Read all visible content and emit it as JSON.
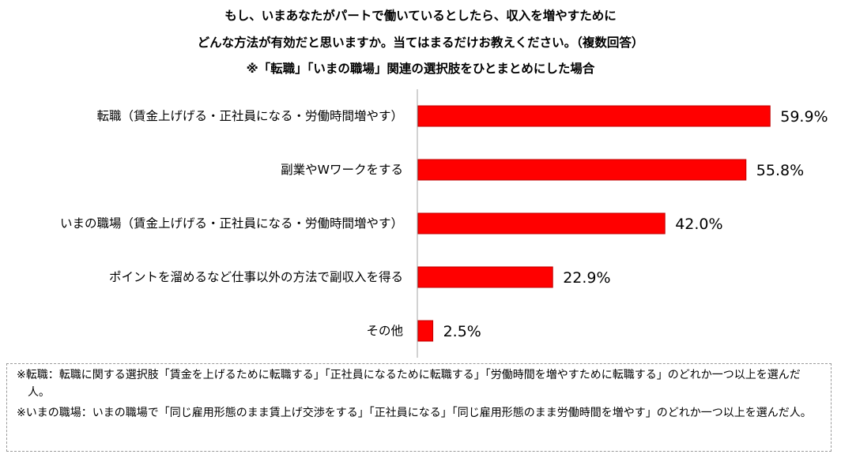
{
  "title_lines": [
    "もし、いまあなたがパートで働いているとしたら、収入を増やすために",
    "どんな方法が有効だと思いますか。当てはまるだけお教えください。（複数回答）",
    "※「転職」「いまの職場」関連の選択肢をひとまとめにした場合"
  ],
  "chart_data": {
    "type": "bar",
    "orientation": "horizontal",
    "categories": [
      "転職（賃金上げげる・正社員になる・労働時間増やす）",
      "副業やWワークをする",
      "いまの職場（賃金上げげる・正社員になる・労働時間増やす）",
      "ポイントを溜めるなど仕事以外の方法で副収入を得る",
      "その他"
    ],
    "values": [
      59.9,
      55.8,
      42.0,
      22.9,
      2.5
    ],
    "value_labels": [
      "59.9%",
      "55.8%",
      "42.0%",
      "22.9%",
      "2.5%"
    ],
    "xlim": [
      0,
      60
    ],
    "bar_color": "#ff0000",
    "bar_edge_color": "#c00000",
    "axis_color": "#a6a6a6",
    "grid": false,
    "legend": "none"
  },
  "notes": [
    "※転職：転職に関する選択肢「賃金を上げるために転職する」「正社員になるために転職する」「労働時間を増やすために転職する」のどれか一つ以上を選んだ人。",
    "※いまの職場：いまの職場で「同じ雇用形態のまま賃上げ交渉をする」「正社員になる」「同じ雇用形態のまま労働時間を増やす」のどれか一つ以上を選んだ人。"
  ]
}
